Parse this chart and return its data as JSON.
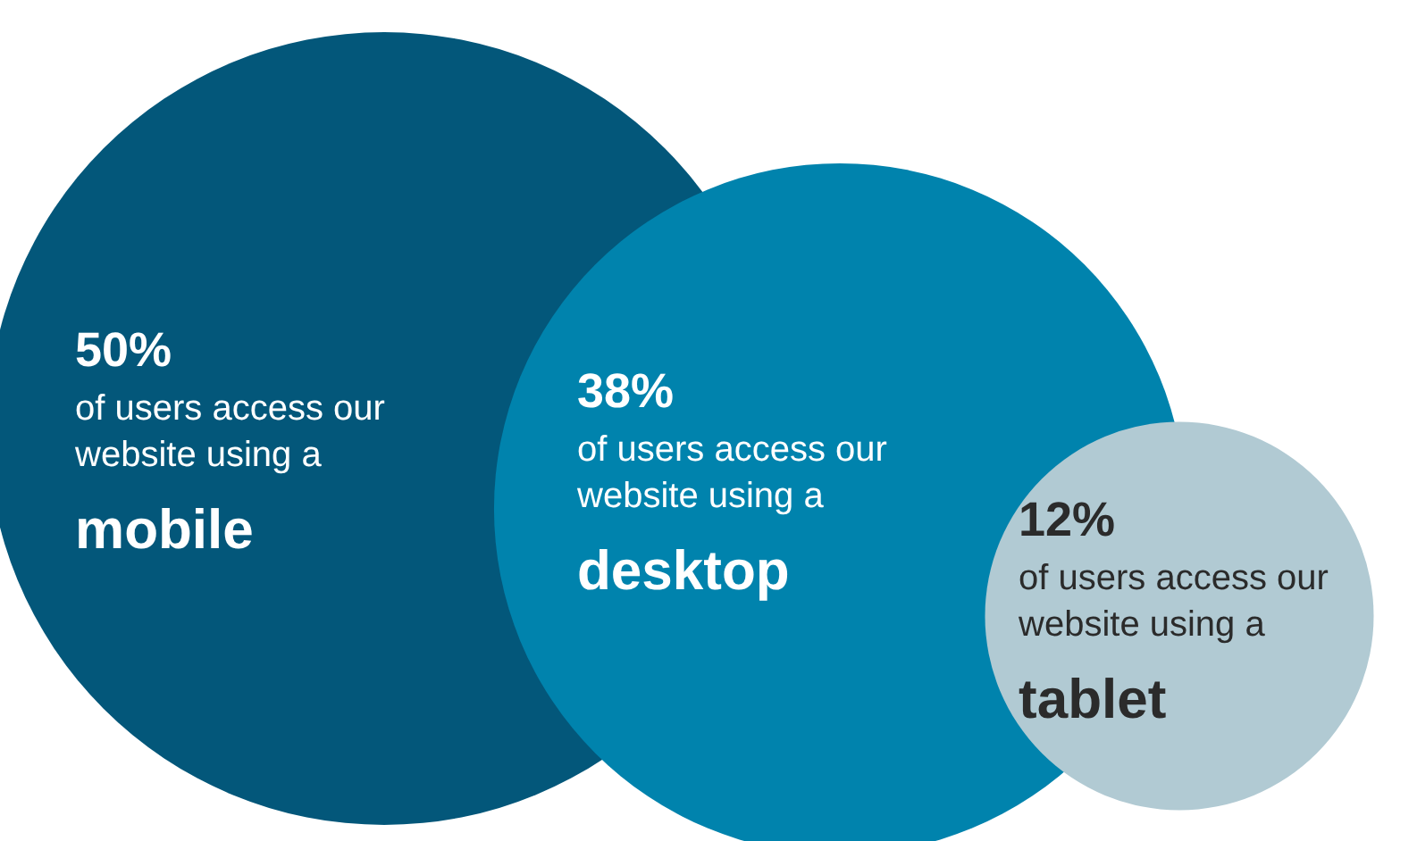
{
  "chart_data": {
    "type": "other",
    "categories": [
      "mobile",
      "desktop",
      "tablet"
    ],
    "values": [
      50,
      38,
      12
    ],
    "value_labels": [
      "50%",
      "38%",
      "12%"
    ],
    "colors": [
      "#03577a",
      "#0083ad",
      "#b1cad3"
    ],
    "annotations": [
      {
        "text": "of users access our\nwebsite using a",
        "x": "mobile"
      },
      {
        "text": "of users access our\nwebsite using a",
        "x": "desktop"
      },
      {
        "text": "of users access our\nwebsite using a",
        "x": "tablet"
      }
    ]
  }
}
